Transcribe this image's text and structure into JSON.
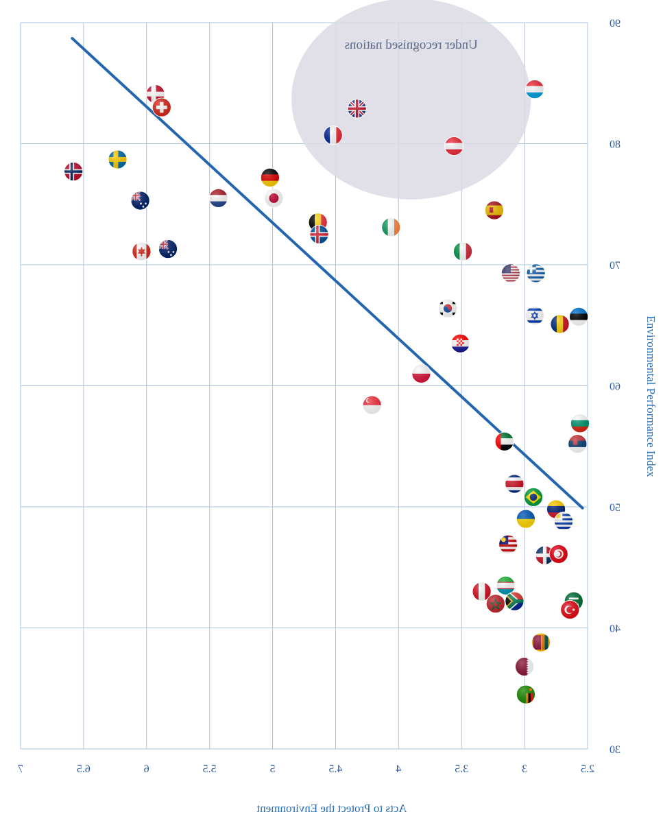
{
  "chart_data": {
    "type": "scatter",
    "xlabel": "Acts to Protect the Environment",
    "ylabel": "Environmental Performance Index",
    "x_axis_reversed": true,
    "xlim": [
      2.5,
      7
    ],
    "ylim": [
      30,
      90
    ],
    "x_ticks": [
      "2.5",
      "3",
      "3.5",
      "4",
      "4.5",
      "5",
      "5.5",
      "6",
      "6.5",
      "7"
    ],
    "y_ticks": [
      "30",
      "40",
      "50",
      "60",
      "70",
      "80",
      "90"
    ],
    "y_axis_side": "right",
    "grid": true,
    "flags_are_mirrored": true,
    "annotation": {
      "label": "Under recognised nations",
      "shape": "ellipse",
      "fill": "#dcdbe4",
      "center": [
        3.9,
        83.7
      ],
      "radii": [
        0.95,
        8.3
      ]
    },
    "trend_line": {
      "color": "#2366ae",
      "x": [
        6.59,
        2.54
      ],
      "y": [
        88.7,
        49.9
      ]
    },
    "points": [
      {
        "flag": "denmark",
        "x": 5.93,
        "y": 84.1
      },
      {
        "flag": "switzerland",
        "x": 5.88,
        "y": 83.0
      },
      {
        "flag": "united-kingdom",
        "x": 4.33,
        "y": 82.9
      },
      {
        "flag": "austria",
        "x": 3.56,
        "y": 79.8
      },
      {
        "flag": "luxembourg",
        "x": 2.92,
        "y": 84.5
      },
      {
        "flag": "france",
        "x": 4.52,
        "y": 80.7
      },
      {
        "flag": "sweden",
        "x": 6.23,
        "y": 78.7
      },
      {
        "flag": "norway",
        "x": 6.58,
        "y": 77.7
      },
      {
        "flag": "germany",
        "x": 5.02,
        "y": 77.2
      },
      {
        "flag": "netherlands",
        "x": 5.43,
        "y": 75.5
      },
      {
        "flag": "japan",
        "x": 4.99,
        "y": 75.5
      },
      {
        "flag": "australia",
        "x": 6.05,
        "y": 75.3
      },
      {
        "flag": "spain",
        "x": 3.24,
        "y": 74.5
      },
      {
        "flag": "belgium",
        "x": 4.64,
        "y": 73.5
      },
      {
        "flag": "iceland",
        "x": 4.63,
        "y": 72.5
      },
      {
        "flag": "ireland",
        "x": 4.06,
        "y": 73.1
      },
      {
        "flag": "canada",
        "x": 6.04,
        "y": 71.1
      },
      {
        "flag": "new-zealand",
        "x": 5.83,
        "y": 71.3
      },
      {
        "flag": "italy",
        "x": 3.49,
        "y": 71.1
      },
      {
        "flag": "united-states",
        "x": 3.11,
        "y": 69.3
      },
      {
        "flag": "greece",
        "x": 2.91,
        "y": 69.3
      },
      {
        "flag": "south-korea",
        "x": 3.61,
        "y": 66.4
      },
      {
        "flag": "israel",
        "x": 2.92,
        "y": 65.8
      },
      {
        "flag": "estonia",
        "x": 2.57,
        "y": 65.7
      },
      {
        "flag": "romania",
        "x": 2.72,
        "y": 65.1
      },
      {
        "flag": "croatia",
        "x": 3.51,
        "y": 63.5
      },
      {
        "flag": "poland",
        "x": 3.82,
        "y": 61.0
      },
      {
        "flag": "singapore",
        "x": 4.21,
        "y": 58.4
      },
      {
        "flag": "bulgaria",
        "x": 2.56,
        "y": 56.9
      },
      {
        "flag": "serbia",
        "x": 2.58,
        "y": 55.2
      },
      {
        "flag": "united-arab-emirates",
        "x": 3.16,
        "y": 55.4
      },
      {
        "flag": "costa-rica",
        "x": 3.08,
        "y": 51.9
      },
      {
        "flag": "brazil",
        "x": 2.93,
        "y": 50.8
      },
      {
        "flag": "venezuela",
        "x": 2.75,
        "y": 49.8
      },
      {
        "flag": "ukraine",
        "x": 2.99,
        "y": 49.0
      },
      {
        "flag": "uruguay",
        "x": 2.69,
        "y": 48.8
      },
      {
        "flag": "malaysia",
        "x": 3.13,
        "y": 46.9
      },
      {
        "flag": "dominican-republic",
        "x": 2.84,
        "y": 46.0
      },
      {
        "flag": "tunisia",
        "x": 2.73,
        "y": 46.1
      },
      {
        "flag": "peru",
        "x": 3.34,
        "y": 43.0
      },
      {
        "flag": "uzbekistan",
        "x": 3.15,
        "y": 43.5
      },
      {
        "flag": "south-africa",
        "x": 3.08,
        "y": 42.2
      },
      {
        "flag": "morocco",
        "x": 3.23,
        "y": 42.0
      },
      {
        "flag": "saudi-arabia",
        "x": 2.61,
        "y": 42.2
      },
      {
        "flag": "turkey",
        "x": 2.64,
        "y": 41.5
      },
      {
        "flag": "sri-lanka",
        "x": 2.87,
        "y": 38.8
      },
      {
        "flag": "qatar",
        "x": 3.0,
        "y": 36.8
      },
      {
        "flag": "zambia",
        "x": 2.99,
        "y": 34.5
      }
    ]
  }
}
